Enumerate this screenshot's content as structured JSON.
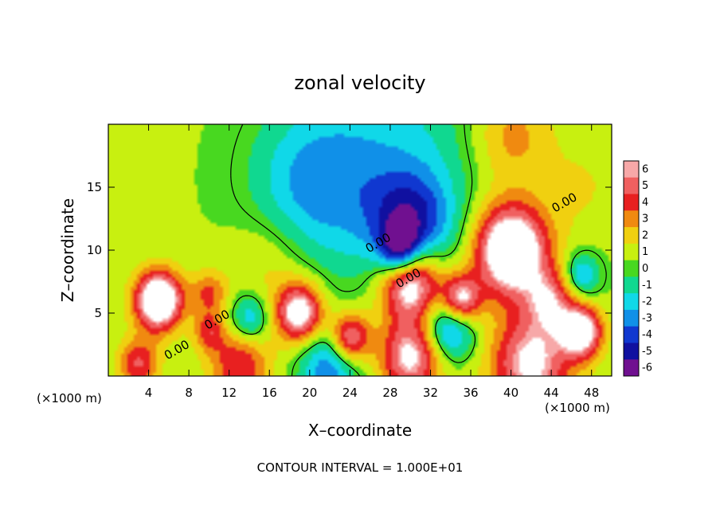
{
  "chart_data": {
    "type": "heatmap",
    "title": "zonal velocity",
    "xlabel": "X–coordinate",
    "ylabel": "Z–coordinate",
    "x_units_left": "(×1000 m)",
    "x_units_right": "(×1000 m)",
    "xlim": [
      0,
      50
    ],
    "ylim": [
      0,
      20
    ],
    "x_ticks": [
      4,
      8,
      12,
      16,
      20,
      24,
      28,
      32,
      36,
      40,
      44,
      48
    ],
    "y_ticks": [
      5,
      10,
      15
    ],
    "colorbar": {
      "levels": [
        6,
        5,
        4,
        3,
        2,
        1,
        0,
        -1,
        -2,
        -3,
        -4,
        -5,
        -6
      ],
      "colors": [
        "#f7a8a8",
        "#f06060",
        "#e82020",
        "#f08a10",
        "#f0d010",
        "#c8f010",
        "#48d820",
        "#10d890",
        "#10d8e8",
        "#1090e8",
        "#1038d0",
        "#1010a0",
        "#701090"
      ],
      "over_color": "#ffffff"
    },
    "contour_labels": [
      "0.00",
      "0.00",
      "0.00",
      "0.00",
      "0.00"
    ],
    "footer": "CONTOUR INTERVAL = 1.000E+01",
    "blobs": [
      {
        "x": 28,
        "z": 17,
        "r": 9,
        "v": -2.5
      },
      {
        "x": 20,
        "z": 15,
        "r": 6,
        "v": -2.8
      },
      {
        "x": 30,
        "z": 12,
        "r": 4,
        "v": -4.5
      },
      {
        "x": 29,
        "z": 10,
        "r": 2,
        "v": -5.5
      },
      {
        "x": 40,
        "z": 19,
        "r": 4,
        "v": 2.5
      },
      {
        "x": 5,
        "z": 6,
        "r": 2.3,
        "v": 9
      },
      {
        "x": 10,
        "z": 6.5,
        "r": 1.8,
        "v": 3
      },
      {
        "x": 14,
        "z": 4.5,
        "r": 2,
        "v": -3.5
      },
      {
        "x": 19,
        "z": 5,
        "r": 2.3,
        "v": 7
      },
      {
        "x": 24,
        "z": 3,
        "r": 2,
        "v": 6
      },
      {
        "x": 30,
        "z": 7.5,
        "r": 3,
        "v": 8
      },
      {
        "x": 35,
        "z": 6,
        "r": 2,
        "v": 7
      },
      {
        "x": 34,
        "z": 4,
        "r": 2.5,
        "v": -5
      },
      {
        "x": 40,
        "z": 10,
        "r": 3.6,
        "v": 9
      },
      {
        "x": 44,
        "z": 6,
        "r": 2.5,
        "v": 4
      },
      {
        "x": 47,
        "z": 3.5,
        "r": 2,
        "v": 7
      },
      {
        "x": 47,
        "z": 8,
        "r": 1.8,
        "v": -3.5
      },
      {
        "x": 3,
        "z": 1,
        "r": 2,
        "v": 4
      },
      {
        "x": 13,
        "z": 1,
        "r": 3,
        "v": 4
      },
      {
        "x": 22,
        "z": 0.8,
        "r": 3,
        "v": -4
      },
      {
        "x": 30,
        "z": 1.5,
        "r": 3,
        "v": 6
      },
      {
        "x": 42,
        "z": 1,
        "r": 4,
        "v": 6
      },
      {
        "x": 10,
        "z": 3.5,
        "r": 1.5,
        "v": 3
      },
      {
        "x": 16,
        "z": 9,
        "r": 4,
        "v": 1.5
      },
      {
        "x": 47,
        "z": 15,
        "r": 4,
        "v": 1
      }
    ]
  }
}
